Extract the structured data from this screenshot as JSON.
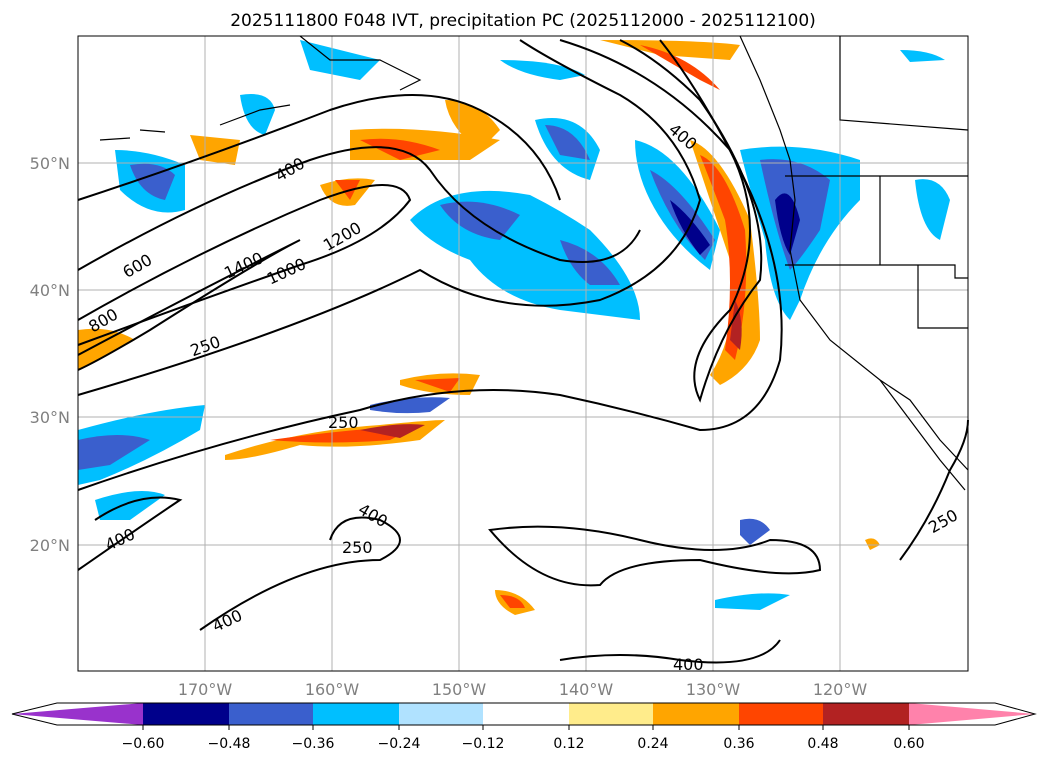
{
  "title": "2025111800 F048 IVT, precipitation PC (2025112000 - 2025112100)",
  "lat_labels": [
    "50°N",
    "40°N",
    "30°N",
    "20°N"
  ],
  "lon_labels": [
    "170°W",
    "160°W",
    "150°W",
    "140°W",
    "130°W",
    "120°W"
  ],
  "contour_labels": [
    "400",
    "600",
    "800",
    "1400",
    "1000",
    "1200",
    "250",
    "250",
    "400",
    "400",
    "250",
    "400",
    "400",
    "250",
    "1200"
  ],
  "colorbar": {
    "ticks": [
      "−0.60",
      "−0.48",
      "−0.36",
      "−0.24",
      "−0.12",
      "0.12",
      "0.24",
      "0.36",
      "0.48",
      "0.60"
    ],
    "colors": [
      "#9932cc",
      "#00008b",
      "#3a5fcd",
      "#00bfff",
      "#b0e2ff",
      "#ffffff",
      "#ffec8b",
      "#ffa500",
      "#ff4500",
      "#b22222",
      "#ff82ab"
    ]
  }
}
